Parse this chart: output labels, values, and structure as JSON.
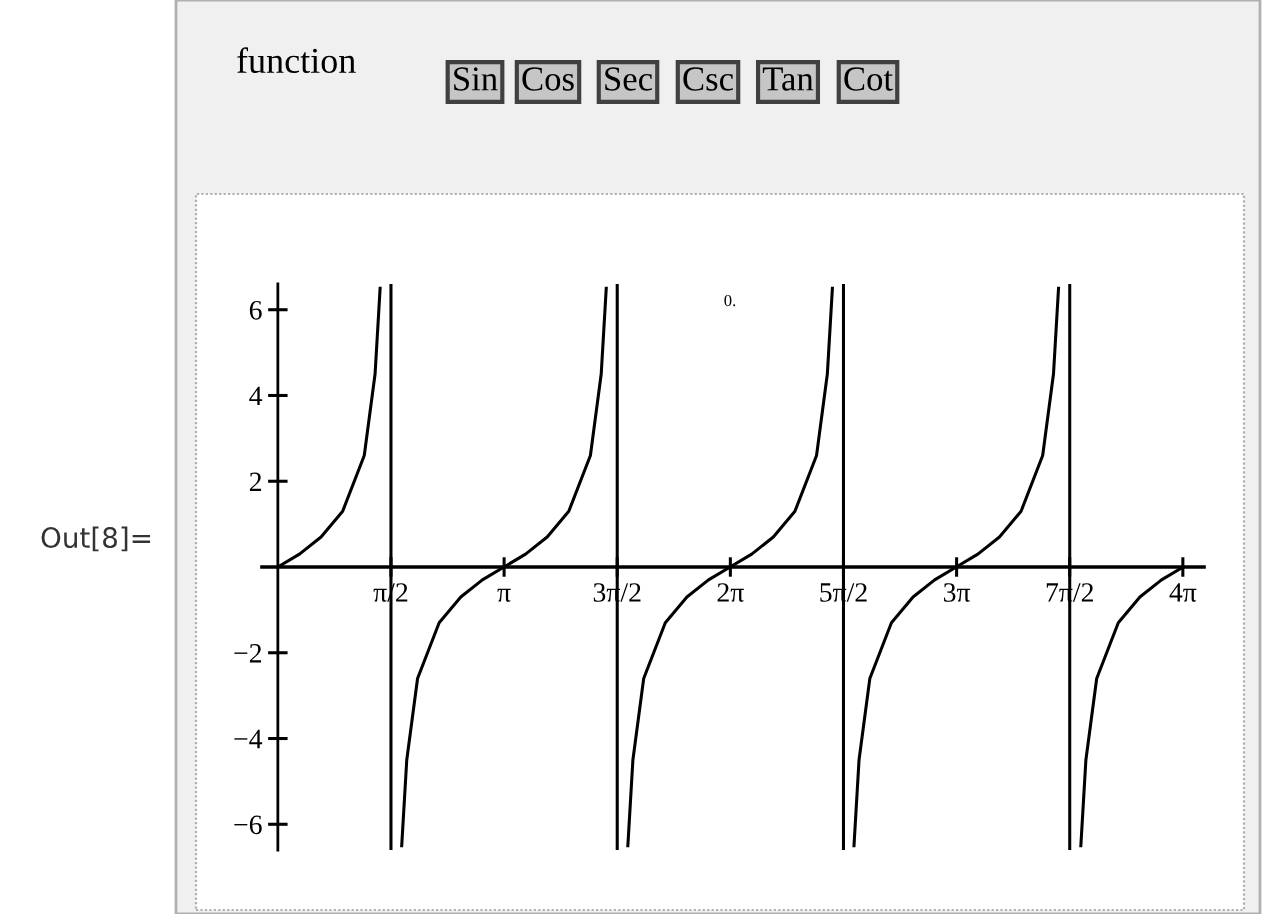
{
  "chart_data": {
    "type": "line",
    "title": "0.",
    "x": [
      0,
      0.3,
      0.6,
      0.9,
      1.2,
      1.35,
      1.42,
      1.5,
      1.72,
      1.79,
      1.94,
      2.24,
      2.54,
      2.84,
      3.14,
      3.44,
      3.74,
      4.04,
      4.34,
      4.49,
      4.56,
      4.64,
      4.86,
      4.93,
      5.08,
      5.38,
      5.68,
      5.98,
      6.28,
      6.58,
      6.88,
      7.18,
      7.48,
      7.63,
      7.7,
      7.78,
      8.0,
      8.07,
      8.22,
      8.52,
      8.82,
      9.12,
      9.42,
      9.72,
      10.02,
      10.32,
      10.62,
      10.77,
      10.84,
      10.92,
      11.15,
      11.22,
      11.37,
      11.67,
      11.97,
      12.27,
      12.57
    ],
    "series": [
      {
        "color": "#000000",
        "values": [
          0,
          0.3,
          0.7,
          1.3,
          2.6,
          4.5,
          6.5,
          null,
          -6.5,
          -4.5,
          -2.6,
          -1.3,
          -0.7,
          -0.3,
          0,
          0.3,
          0.7,
          1.3,
          2.6,
          4.5,
          6.5,
          null,
          -6.5,
          -4.5,
          -2.6,
          -1.3,
          -0.7,
          -0.3,
          0,
          0.3,
          0.7,
          1.3,
          2.6,
          4.5,
          6.5,
          null,
          -6.5,
          -4.5,
          -2.6,
          -1.3,
          -0.7,
          -0.3,
          0,
          0.3,
          0.7,
          1.3,
          2.6,
          4.5,
          6.5,
          null,
          -6.5,
          -4.5,
          -2.6,
          -1.3,
          -0.7,
          -0.3,
          0
        ]
      }
    ],
    "xlim": [
      -0.22,
      12.86
    ],
    "ylim": [
      -6.6,
      6.6
    ],
    "xticks": [
      {
        "value": 1.5708,
        "label": "π/2"
      },
      {
        "value": 3.1416,
        "label": "π"
      },
      {
        "value": 4.7124,
        "label": "3π/2"
      },
      {
        "value": 6.2832,
        "label": "2π"
      },
      {
        "value": 7.854,
        "label": "5π/2"
      },
      {
        "value": 9.4248,
        "label": "3π"
      },
      {
        "value": 10.9956,
        "label": "7π/2"
      },
      {
        "value": 12.5664,
        "label": "4π"
      }
    ],
    "yticks": [
      {
        "value": -6,
        "label": "−6"
      },
      {
        "value": -4,
        "label": "−4"
      },
      {
        "value": -2,
        "label": "−2"
      },
      2,
      4,
      6
    ],
    "ref_lines": [
      {
        "axis": "x",
        "value": 1.5708,
        "color": "#000000"
      },
      {
        "axis": "x",
        "value": 4.7124,
        "color": "#000000"
      },
      {
        "axis": "x",
        "value": 7.854,
        "color": "#000000"
      },
      {
        "axis": "x",
        "value": 10.9956,
        "color": "#000000"
      }
    ],
    "annotations": [
      "function",
      "Sin",
      "Cos",
      "Sec",
      "Csc",
      "Tan",
      "Cot",
      "Out[8]="
    ],
    "grid": false,
    "legend": false,
    "marker": "none",
    "line_style": "solid"
  }
}
